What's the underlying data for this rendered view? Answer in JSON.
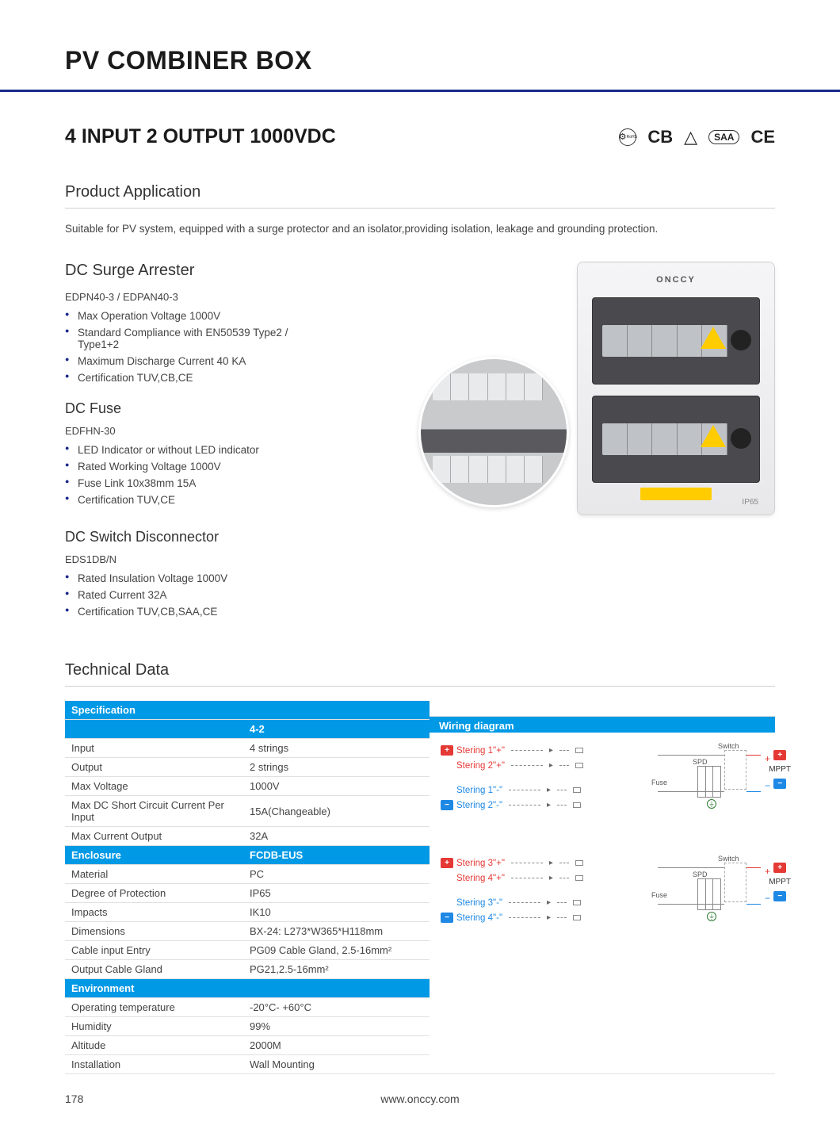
{
  "page_title": "PV COMBINER BOX",
  "subtitle": "4 INPUT 2 OUTPUT 1000VDC",
  "cert_marks": [
    "RoHS",
    "CB",
    "△",
    "SAA",
    "CE"
  ],
  "sections": {
    "application": {
      "heading": "Product Application",
      "text": "Suitable for PV system, equipped with a surge protector and an isolator,providing isolation, leakage and grounding protection."
    },
    "surge": {
      "heading": "DC Surge Arrester",
      "model": "EDPN40-3 / EDPAN40-3",
      "items": [
        "Max Operation Voltage 1000V",
        "Standard Compliance with EN50539 Type2 / Type1+2",
        "Maximum Discharge Current 40 KA",
        "Certification TUV,CB,CE"
      ]
    },
    "fuse": {
      "heading": "DC Fuse",
      "model": "EDFHN-30",
      "items": [
        "LED Indicator or without LED indicator",
        "Rated Working Voltage 1000V",
        "Fuse Link 10x38mm 15A",
        "Certification TUV,CE"
      ]
    },
    "disconnector": {
      "heading": "DC Switch Disconnector",
      "model": "EDS1DB/N",
      "items": [
        "Rated Insulation Voltage 1000V",
        "Rated Current  32A",
        "Certification TUV,CB,SAA,CE"
      ]
    }
  },
  "technical": {
    "heading": "Technical Data",
    "spec_header": "Specification",
    "col2_header": "4-2",
    "wiring_header": "Wiring diagram",
    "rows": [
      {
        "k": "Input",
        "v": "4 strings"
      },
      {
        "k": "Output",
        "v": "2 strings"
      },
      {
        "k": "Max Voltage",
        "v": "1000V"
      },
      {
        "k": "Max DC Short Circuit Current Per Input",
        "v": "15A(Changeable)"
      },
      {
        "k": "Max Current Output",
        "v": "32A"
      }
    ],
    "enclosure_header": {
      "k": "Enclosure",
      "v": "FCDB-EUS"
    },
    "enclosure_rows": [
      {
        "k": "Material",
        "v": "PC"
      },
      {
        "k": "Degree of Protection",
        "v": "IP65"
      },
      {
        "k": "Impacts",
        "v": "IK10"
      },
      {
        "k": "Dimensions",
        "v": "BX-24: L273*W365*H118mm"
      },
      {
        "k": "Cable input Entry",
        "v": "PG09 Cable Gland, 2.5-16mm²"
      },
      {
        "k": "Output Cable Gland",
        "v": "PG21,2.5-16mm²"
      }
    ],
    "env_header": "Environment",
    "env_rows": [
      {
        "k": "Operating temperature",
        "v": "-20°C- +60°C"
      },
      {
        "k": "Humidity",
        "v": "99%"
      },
      {
        "k": "Altitude",
        "v": "2000M"
      },
      {
        "k": "Installation",
        "v": "Wall Mounting"
      }
    ]
  },
  "wiring": {
    "groups": [
      {
        "lines": [
          {
            "box": "plus",
            "sym": "+",
            "label": "Stering 1\"+\"",
            "cls": "red"
          },
          {
            "box": "",
            "sym": "",
            "label": "Stering 2\"+\"",
            "cls": "red"
          },
          {
            "box": "",
            "sym": "",
            "label": "Stering 1\"-\"",
            "cls": "blue"
          },
          {
            "box": "minus",
            "sym": "−",
            "label": "Stering 2\"-\"",
            "cls": "blue"
          }
        ],
        "sw": "Switch",
        "spd": "SPD",
        "fuse": "Fuse",
        "out": "MPPT"
      },
      {
        "lines": [
          {
            "box": "plus",
            "sym": "+",
            "label": "Stering 3\"+\"",
            "cls": "red"
          },
          {
            "box": "",
            "sym": "",
            "label": "Stering 4\"+\"",
            "cls": "red"
          },
          {
            "box": "",
            "sym": "",
            "label": "Stering 3\"-\"",
            "cls": "blue"
          },
          {
            "box": "minus",
            "sym": "−",
            "label": "Stering 4\"-\"",
            "cls": "blue"
          }
        ],
        "sw": "Switch",
        "spd": "SPD",
        "fuse": "Fuse",
        "out": "MPPT"
      }
    ]
  },
  "product_brand": "ONCCY",
  "product_ip": "IP65",
  "footer": {
    "page": "178",
    "url": "www.onccy.com"
  },
  "colors": {
    "accent": "#0099e5",
    "rule": "#1a2a8a",
    "red": "#e53935",
    "blue": "#1e88e5",
    "warn": "#ffcc00"
  }
}
